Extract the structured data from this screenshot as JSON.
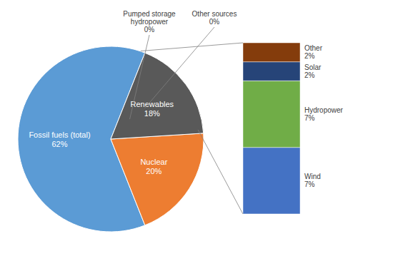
{
  "chart_data": [
    {
      "type": "pie",
      "categories": [
        "Fossil fuels (total)",
        "Nuclear",
        "Renewables"
      ],
      "values": [
        62,
        20,
        18
      ],
      "value_labels": [
        "62%",
        "20%",
        "18%"
      ],
      "colors": [
        "#5B9BD5",
        "#ED7D31",
        "#595959"
      ],
      "data_labels": true,
      "annotations": [
        "Pumped storage\nhydropower\n0%",
        "Other sources\n0%"
      ]
    },
    {
      "type": "bar",
      "stacked": true,
      "categories": [
        null
      ],
      "series": [
        {
          "name": "Wind",
          "color": "#4472C4",
          "values": [
            7
          ],
          "value_labels": [
            "7%"
          ]
        },
        {
          "name": "Hydropower",
          "color": "#70AD47",
          "values": [
            7
          ],
          "value_labels": [
            "7%"
          ]
        },
        {
          "name": "Solar",
          "color": "#264478",
          "values": [
            2
          ],
          "value_labels": [
            "2%"
          ]
        },
        {
          "name": "Other",
          "color": "#843C0C",
          "values": [
            2
          ],
          "value_labels": [
            "2%"
          ]
        }
      ],
      "ylim": [
        0,
        18
      ],
      "data_labels": true,
      "tick_labels": false
    }
  ]
}
